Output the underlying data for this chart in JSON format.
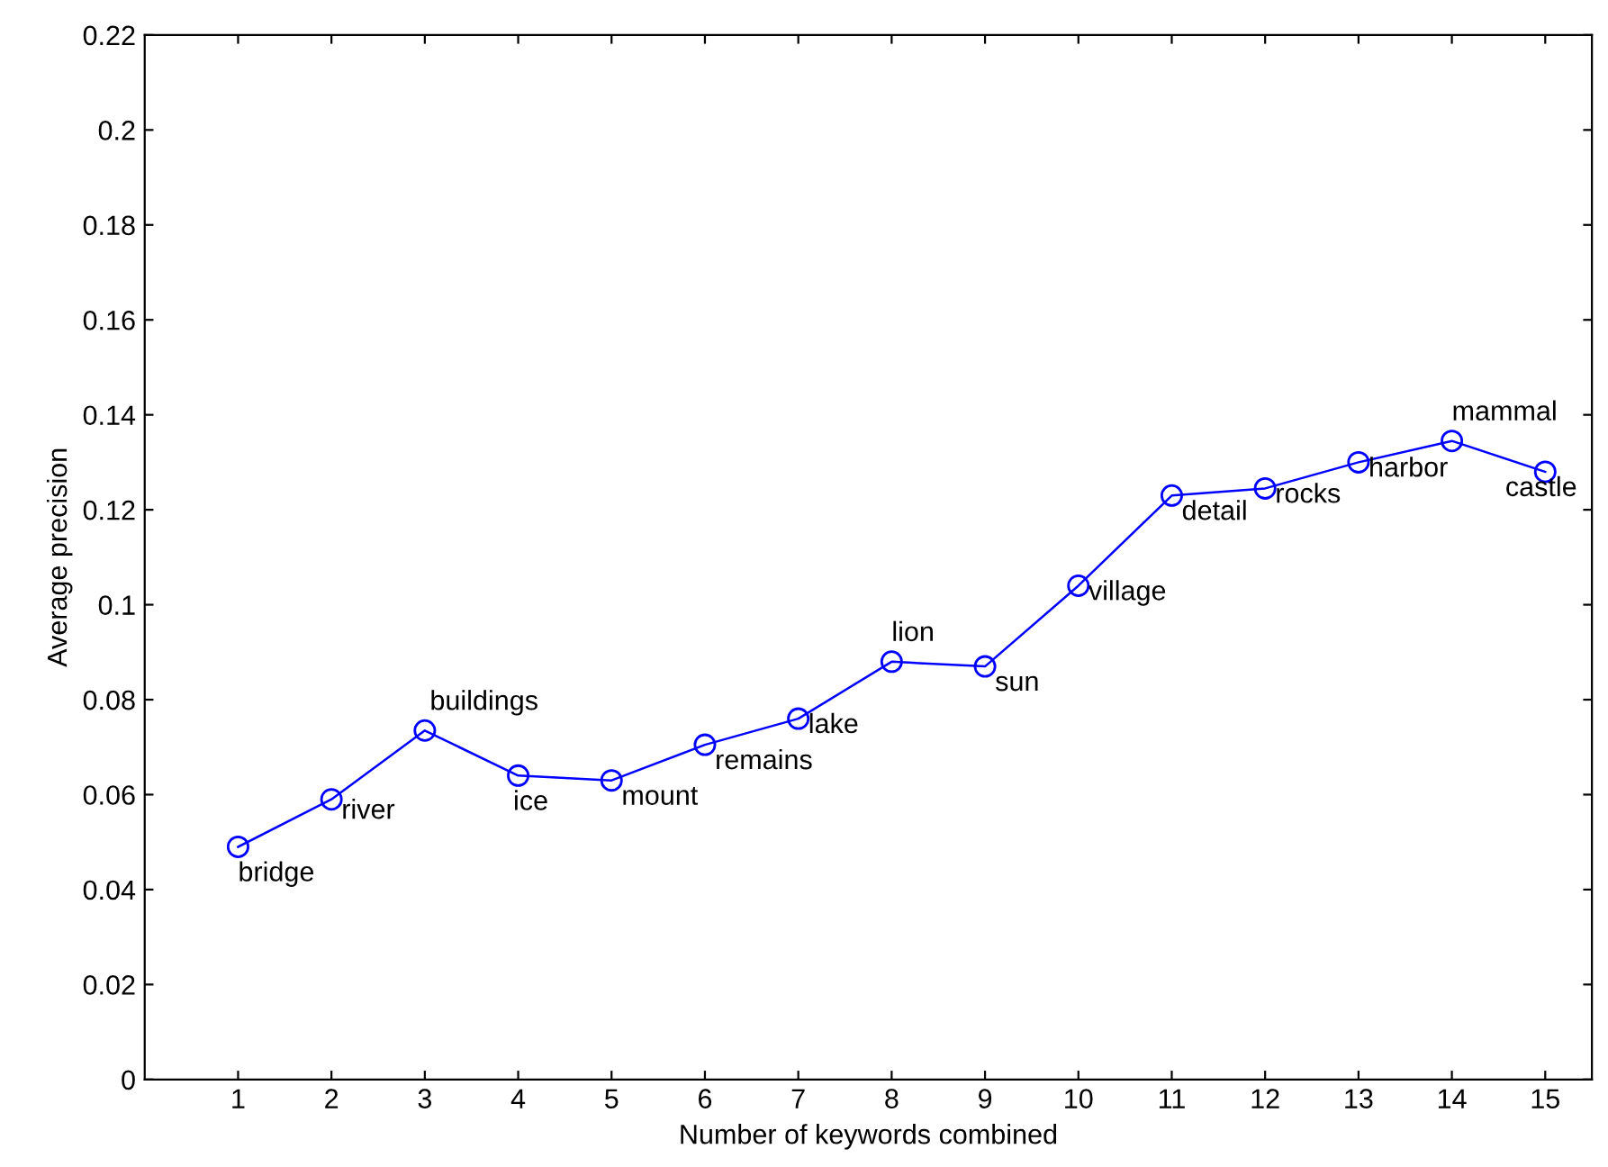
{
  "chart_data": {
    "type": "line",
    "xlabel": "Number of keywords combined",
    "ylabel": "Average precision",
    "x": [
      1,
      2,
      3,
      4,
      5,
      6,
      7,
      8,
      9,
      10,
      11,
      12,
      13,
      14,
      15
    ],
    "series": [
      {
        "color": "#0000ff",
        "values": [
          0.049,
          0.059,
          0.0735,
          0.064,
          0.063,
          0.0705,
          0.076,
          0.088,
          0.087,
          0.104,
          0.123,
          0.1245,
          0.13,
          0.1345,
          0.128
        ]
      }
    ],
    "marker": "circle",
    "line_style": "solid",
    "grid": false,
    "xlim": [
      0,
      15.5
    ],
    "xticks": [
      1,
      2,
      3,
      4,
      5,
      6,
      7,
      8,
      9,
      10,
      11,
      12,
      13,
      14,
      15
    ],
    "ylim": [
      0,
      0.22
    ],
    "yticks": [
      0,
      0.02,
      0.04,
      0.06,
      0.08,
      0.1,
      0.12,
      0.14,
      0.16,
      0.18,
      0.2,
      0.22
    ],
    "annotations": [
      {
        "text": "bridge",
        "x": 1,
        "y": 0.049
      },
      {
        "text": "river",
        "x": 2,
        "y": 0.059
      },
      {
        "text": "buildings",
        "x": 3,
        "y": 0.0735
      },
      {
        "text": "ice",
        "x": 4,
        "y": 0.064
      },
      {
        "text": "mount",
        "x": 5,
        "y": 0.063
      },
      {
        "text": "remains",
        "x": 6,
        "y": 0.0705
      },
      {
        "text": "lake",
        "x": 7,
        "y": 0.076
      },
      {
        "text": "lion",
        "x": 8,
        "y": 0.088
      },
      {
        "text": "sun",
        "x": 9,
        "y": 0.087
      },
      {
        "text": "village",
        "x": 10,
        "y": 0.104
      },
      {
        "text": "detail",
        "x": 11,
        "y": 0.123
      },
      {
        "text": "rocks",
        "x": 12,
        "y": 0.1245
      },
      {
        "text": "harbor",
        "x": 13,
        "y": 0.13
      },
      {
        "text": "mammal",
        "x": 14,
        "y": 0.1345
      },
      {
        "text": "castle",
        "x": 15,
        "y": 0.128
      }
    ]
  }
}
